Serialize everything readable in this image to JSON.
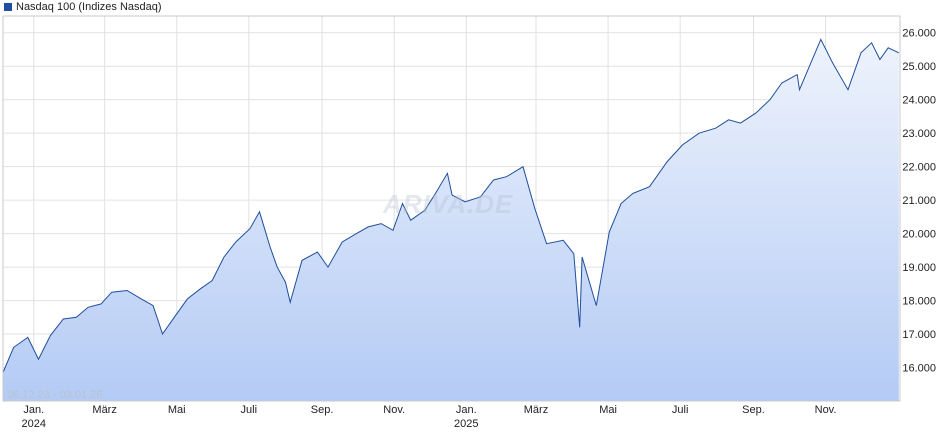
{
  "legend": {
    "label": "Nasdaq 100 (Indizes Nasdaq)",
    "color": "#1f4e9c"
  },
  "range_label": "06.12.23 - 03.01.26",
  "watermark": "ARIVA.DE",
  "chart_data": {
    "type": "area",
    "series": [
      {
        "name": "Nasdaq 100 (Indizes Nasdaq)",
        "x": [
          "2023-12-06",
          "2023-12-15",
          "2023-12-27",
          "2024-01-05",
          "2024-01-15",
          "2024-01-26",
          "2024-02-06",
          "2024-02-16",
          "2024-02-27",
          "2024-03-07",
          "2024-03-20",
          "2024-04-01",
          "2024-04-11",
          "2024-04-19",
          "2024-04-30",
          "2024-05-10",
          "2024-05-21",
          "2024-05-31",
          "2024-06-10",
          "2024-06-20",
          "2024-07-02",
          "2024-07-10",
          "2024-07-19",
          "2024-07-25",
          "2024-08-01",
          "2024-08-05",
          "2024-08-15",
          "2024-08-28",
          "2024-09-06",
          "2024-09-18",
          "2024-09-30",
          "2024-10-10",
          "2024-10-21",
          "2024-10-31",
          "2024-11-08",
          "2024-11-15",
          "2024-11-27",
          "2024-12-06",
          "2024-12-16",
          "2024-12-20",
          "2024-12-31",
          "2025-01-13",
          "2025-01-24",
          "2025-02-04",
          "2025-02-18",
          "2025-02-28",
          "2025-03-10",
          "2025-03-24",
          "2025-04-02",
          "2025-04-07",
          "2025-04-09",
          "2025-04-21",
          "2025-05-02",
          "2025-05-12",
          "2025-05-22",
          "2025-06-05",
          "2025-06-20",
          "2025-07-03",
          "2025-07-17",
          "2025-07-31",
          "2025-08-11",
          "2025-08-21",
          "2025-09-03",
          "2025-09-15",
          "2025-09-25",
          "2025-10-08",
          "2025-10-10",
          "2025-10-28",
          "2025-11-07",
          "2025-11-20",
          "2025-12-01",
          "2025-12-10",
          "2025-12-17",
          "2025-12-24",
          "2026-01-02"
        ],
        "values": [
          15850,
          16600,
          16900,
          16250,
          16950,
          17450,
          17500,
          17800,
          17900,
          18250,
          18300,
          18050,
          17850,
          17000,
          17550,
          18050,
          18350,
          18600,
          19300,
          19750,
          20150,
          20650,
          19600,
          19000,
          18550,
          17950,
          19200,
          19450,
          19000,
          19750,
          20000,
          20200,
          20300,
          20100,
          20900,
          20400,
          20700,
          21200,
          21800,
          21150,
          20950,
          21100,
          21600,
          21700,
          22000,
          20750,
          19700,
          19800,
          19400,
          17200,
          19300,
          17850,
          20050,
          20900,
          21200,
          21400,
          22150,
          22650,
          23000,
          23150,
          23400,
          23300,
          23600,
          24000,
          24500,
          24750,
          24300,
          25800,
          25100,
          24300,
          25400,
          25700,
          25200,
          25550,
          25400
        ]
      }
    ],
    "ylim": [
      15000,
      26500
    ],
    "yticks": [
      16000,
      17000,
      18000,
      19000,
      20000,
      21000,
      22000,
      23000,
      24000,
      25000,
      26000
    ],
    "ytick_labels": [
      "16.000",
      "17.000",
      "18.000",
      "19.000",
      "20.000",
      "21.000",
      "22.000",
      "23.000",
      "24.000",
      "25.000",
      "26.000"
    ],
    "xlim": [
      "2023-12-06",
      "2026-01-03"
    ],
    "xticks": [
      {
        "date": "2024-01-01",
        "label": "Jan.",
        "year": "2024"
      },
      {
        "date": "2024-03-01",
        "label": "März",
        "year": ""
      },
      {
        "date": "2024-05-01",
        "label": "Mai",
        "year": ""
      },
      {
        "date": "2024-07-01",
        "label": "Juli",
        "year": ""
      },
      {
        "date": "2024-09-01",
        "label": "Sep.",
        "year": ""
      },
      {
        "date": "2024-11-01",
        "label": "Nov.",
        "year": ""
      },
      {
        "date": "2025-01-01",
        "label": "Jan.",
        "year": "2025"
      },
      {
        "date": "2025-03-01",
        "label": "März",
        "year": ""
      },
      {
        "date": "2025-05-01",
        "label": "Mai",
        "year": ""
      },
      {
        "date": "2025-07-01",
        "label": "Juli",
        "year": ""
      },
      {
        "date": "2025-09-01",
        "label": "Sep.",
        "year": ""
      },
      {
        "date": "2025-11-01",
        "label": "Nov.",
        "year": ""
      }
    ],
    "grid": true,
    "line_color": "#1f4e9c",
    "fill_color_top": "#eef3fc",
    "fill_color_bottom": "#b4cbf5",
    "y_axis_position": "right"
  }
}
